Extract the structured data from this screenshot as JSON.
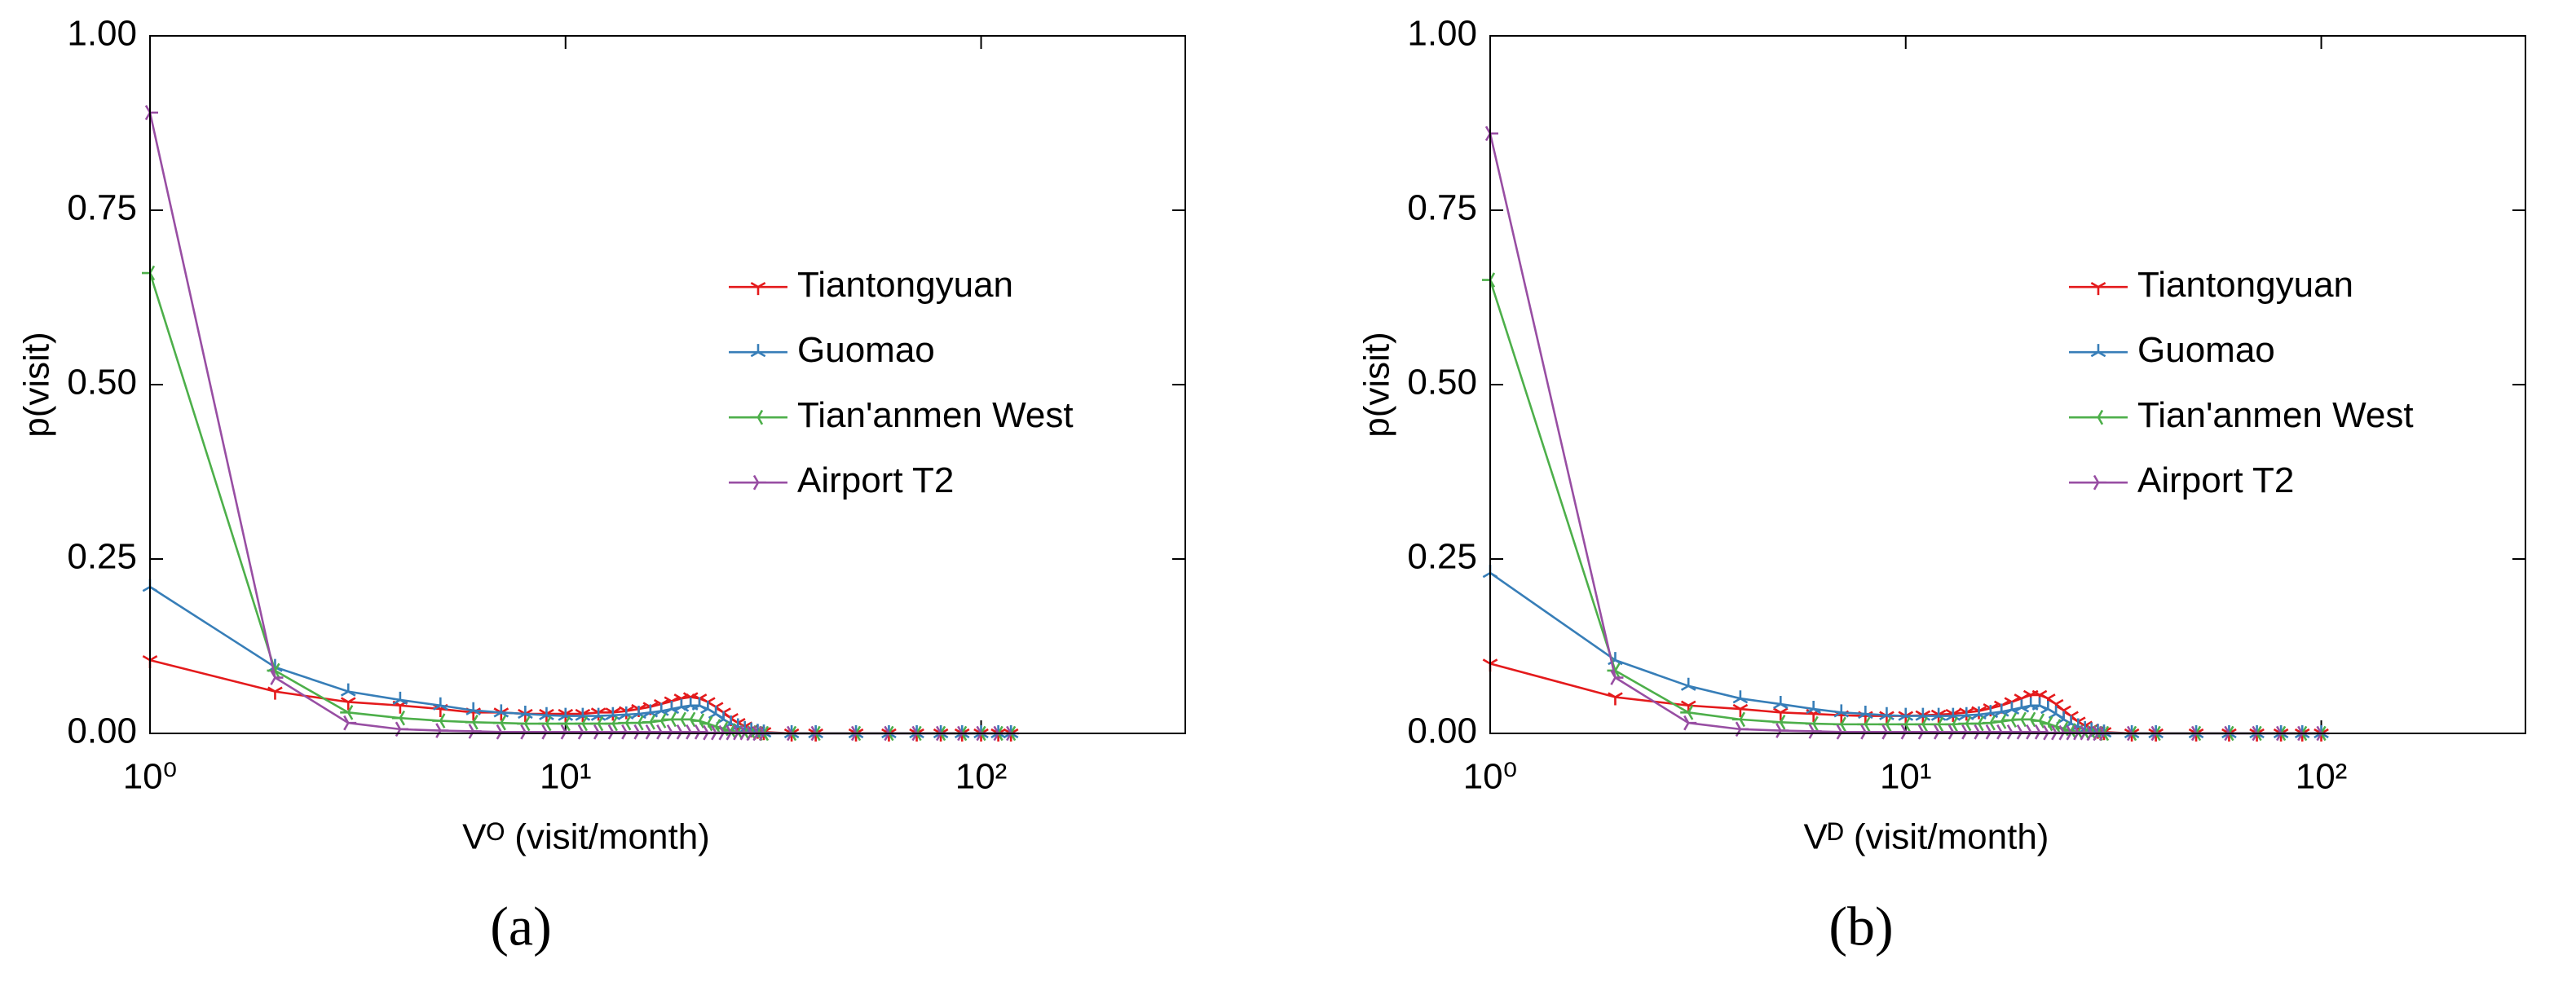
{
  "chart_data": [
    {
      "type": "line",
      "caption": "(a)",
      "xlabel": "Vᴼ (visit/month)",
      "ylabel": "p(visit)",
      "log_x": true,
      "legend": "center right",
      "xlim": [
        1,
        310
      ],
      "ylim": [
        0,
        1
      ],
      "xticks": [
        {
          "value": 1,
          "label": "10⁰"
        },
        {
          "value": 10,
          "label": "10¹"
        },
        {
          "value": 100,
          "label": "10²"
        }
      ],
      "yticks": [
        {
          "value": 0,
          "label": "0.00"
        },
        {
          "value": 0.25,
          "label": "0.25"
        },
        {
          "value": 0.5,
          "label": "0.50"
        },
        {
          "value": 0.75,
          "label": "0.75"
        },
        {
          "value": 1,
          "label": "1.00"
        }
      ],
      "x": [
        1,
        2,
        3,
        4,
        5,
        6,
        7,
        8,
        9,
        10,
        11,
        12,
        13,
        14,
        15,
        16,
        17,
        18,
        19,
        20,
        21,
        22,
        23,
        24,
        25,
        26,
        27,
        28,
        29,
        30,
        35,
        40,
        50,
        60,
        70,
        80,
        90,
        100,
        110,
        118
      ],
      "series": [
        {
          "name": "Tiantongyuan",
          "color": "#e41a1c",
          "marker": "tri_down",
          "values": [
            0.105,
            0.06,
            0.045,
            0.04,
            0.035,
            0.03,
            0.03,
            0.028,
            0.028,
            0.028,
            0.028,
            0.03,
            0.03,
            0.032,
            0.035,
            0.038,
            0.042,
            0.046,
            0.05,
            0.052,
            0.05,
            0.045,
            0.038,
            0.03,
            0.022,
            0.015,
            0.01,
            0.006,
            0.004,
            0.002,
            0,
            0,
            0,
            0,
            0,
            0,
            0,
            0,
            0,
            0
          ]
        },
        {
          "name": "Guomao",
          "color": "#377eb8",
          "marker": "tri_up",
          "values": [
            0.21,
            0.095,
            0.06,
            0.048,
            0.04,
            0.033,
            0.03,
            0.028,
            0.026,
            0.025,
            0.025,
            0.025,
            0.026,
            0.027,
            0.028,
            0.03,
            0.032,
            0.035,
            0.038,
            0.04,
            0.04,
            0.035,
            0.028,
            0.02,
            0.014,
            0.01,
            0.006,
            0.004,
            0.002,
            0.001,
            0,
            0,
            0,
            0,
            0,
            0,
            0,
            0,
            0,
            0
          ]
        },
        {
          "name": "Tian'anmen West",
          "color": "#4daf4a",
          "marker": "tri_left",
          "values": [
            0.66,
            0.09,
            0.03,
            0.022,
            0.018,
            0.016,
            0.015,
            0.014,
            0.014,
            0.014,
            0.014,
            0.014,
            0.014,
            0.015,
            0.015,
            0.016,
            0.018,
            0.02,
            0.02,
            0.02,
            0.018,
            0.014,
            0.01,
            0.007,
            0.004,
            0.002,
            0.001,
            0.001,
            0,
            0,
            0,
            0,
            0,
            0,
            0,
            0,
            0,
            0,
            0,
            0
          ]
        },
        {
          "name": "Airport T2",
          "color": "#984ea3",
          "marker": "tri_right",
          "values": [
            0.89,
            0.08,
            0.015,
            0.006,
            0.004,
            0.003,
            0.002,
            0.002,
            0.002,
            0.002,
            0.002,
            0.002,
            0.002,
            0.002,
            0.002,
            0.002,
            0.002,
            0.002,
            0.002,
            0.002,
            0.002,
            0.001,
            0.001,
            0.001,
            0.001,
            0.001,
            0.001,
            0,
            0,
            0,
            0,
            0,
            0,
            0,
            0,
            0,
            0,
            0,
            0,
            0
          ]
        }
      ]
    },
    {
      "type": "line",
      "caption": "(b)",
      "xlabel": "Vᴰ (visit/month)",
      "ylabel": "p(visit)",
      "log_x": true,
      "legend": "center right",
      "xlim": [
        1,
        310
      ],
      "ylim": [
        0,
        1
      ],
      "xticks": [
        {
          "value": 1,
          "label": "10⁰"
        },
        {
          "value": 10,
          "label": "10¹"
        },
        {
          "value": 100,
          "label": "10²"
        }
      ],
      "yticks": [
        {
          "value": 0,
          "label": "0.00"
        },
        {
          "value": 0.25,
          "label": "0.25"
        },
        {
          "value": 0.5,
          "label": "0.50"
        },
        {
          "value": 0.75,
          "label": "0.75"
        },
        {
          "value": 1,
          "label": "1.00"
        }
      ],
      "x": [
        1,
        2,
        3,
        4,
        5,
        6,
        7,
        8,
        9,
        10,
        11,
        12,
        13,
        14,
        15,
        16,
        17,
        18,
        19,
        20,
        21,
        22,
        23,
        24,
        25,
        26,
        27,
        28,
        29,
        30,
        35,
        40,
        50,
        60,
        70,
        80,
        90,
        100
      ],
      "series": [
        {
          "name": "Tiantongyuan",
          "color": "#e41a1c",
          "marker": "tri_down",
          "values": [
            0.1,
            0.052,
            0.04,
            0.035,
            0.03,
            0.028,
            0.026,
            0.025,
            0.025,
            0.025,
            0.026,
            0.027,
            0.028,
            0.03,
            0.032,
            0.036,
            0.04,
            0.045,
            0.05,
            0.055,
            0.055,
            0.05,
            0.042,
            0.033,
            0.025,
            0.017,
            0.011,
            0.007,
            0.004,
            0.002,
            0,
            0,
            0,
            0,
            0,
            0,
            0,
            0
          ]
        },
        {
          "name": "Guomao",
          "color": "#377eb8",
          "marker": "tri_up",
          "values": [
            0.23,
            0.105,
            0.068,
            0.05,
            0.042,
            0.035,
            0.03,
            0.028,
            0.026,
            0.025,
            0.025,
            0.025,
            0.025,
            0.026,
            0.027,
            0.029,
            0.031,
            0.034,
            0.037,
            0.04,
            0.04,
            0.035,
            0.028,
            0.02,
            0.014,
            0.01,
            0.006,
            0.004,
            0.002,
            0.001,
            0,
            0,
            0,
            0,
            0,
            0,
            0,
            0
          ]
        },
        {
          "name": "Tian'anmen West",
          "color": "#4daf4a",
          "marker": "tri_left",
          "values": [
            0.65,
            0.09,
            0.03,
            0.02,
            0.016,
            0.014,
            0.013,
            0.013,
            0.013,
            0.013,
            0.013,
            0.013,
            0.013,
            0.014,
            0.014,
            0.015,
            0.017,
            0.019,
            0.02,
            0.02,
            0.018,
            0.014,
            0.01,
            0.007,
            0.004,
            0.002,
            0.001,
            0.001,
            0,
            0,
            0,
            0,
            0,
            0,
            0,
            0,
            0,
            0
          ]
        },
        {
          "name": "Airport T2",
          "color": "#984ea3",
          "marker": "tri_right",
          "values": [
            0.86,
            0.08,
            0.015,
            0.006,
            0.004,
            0.003,
            0.002,
            0.002,
            0.002,
            0.002,
            0.002,
            0.002,
            0.002,
            0.002,
            0.002,
            0.002,
            0.002,
            0.002,
            0.002,
            0.002,
            0.002,
            0.001,
            0.001,
            0.001,
            0.001,
            0.001,
            0.001,
            0,
            0,
            0,
            0,
            0,
            0,
            0,
            0,
            0,
            0,
            0
          ]
        }
      ]
    }
  ]
}
